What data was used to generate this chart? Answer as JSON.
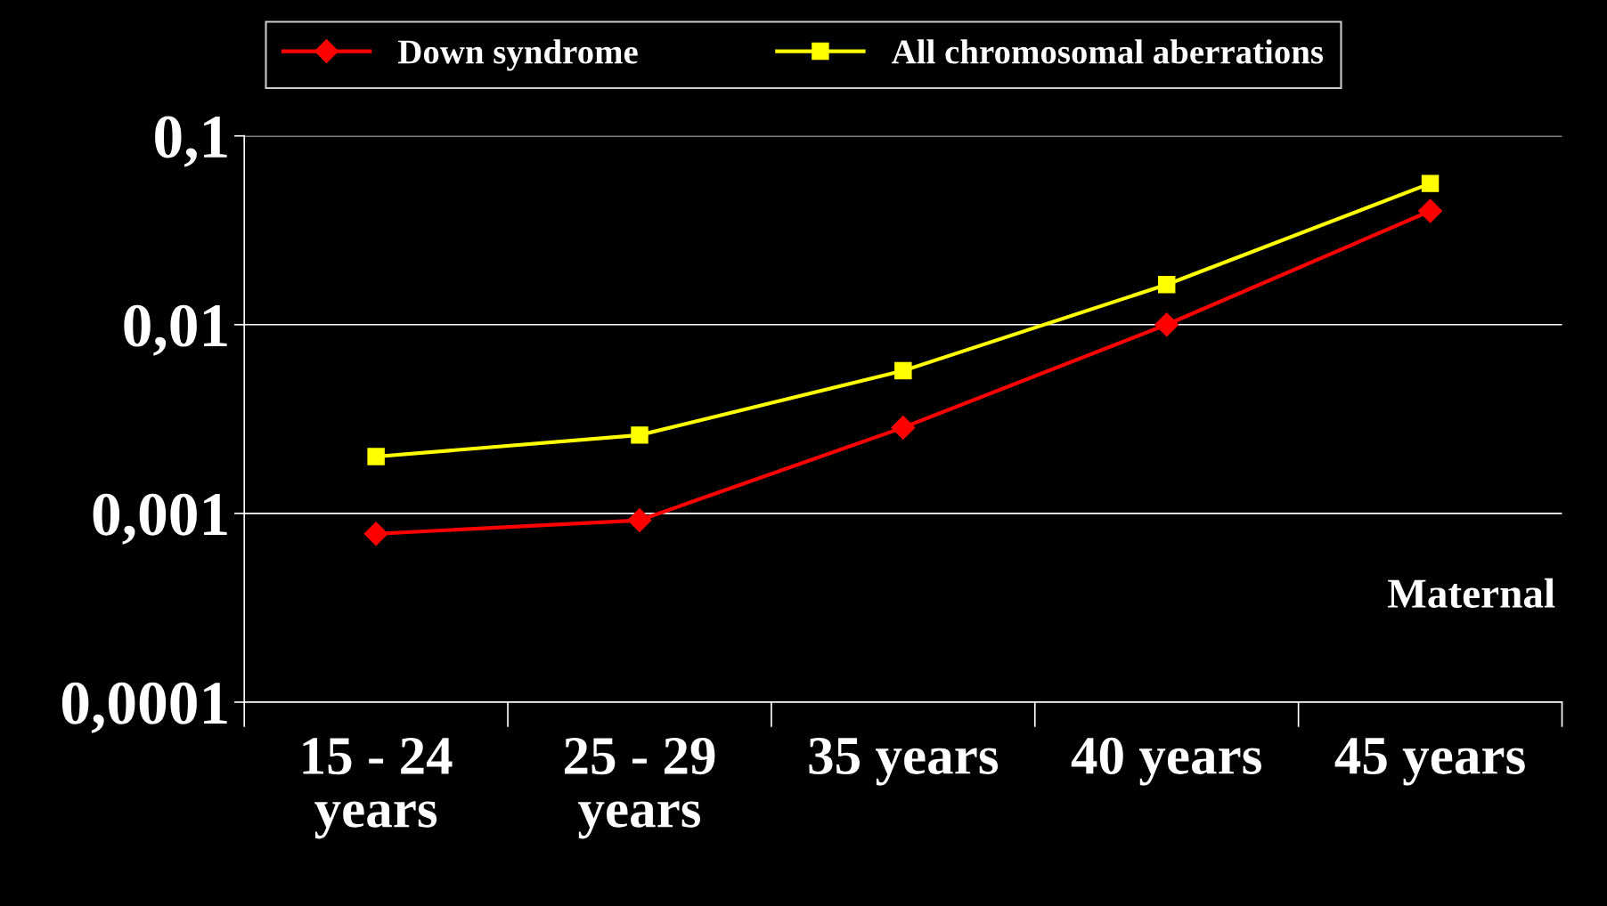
{
  "chart_data": {
    "type": "line",
    "xlabel": "Maternal",
    "categories": [
      "15 - 24 years",
      "25 - 29 years",
      "35 years",
      "40 years",
      "45 years"
    ],
    "series": [
      {
        "name": "Down syndrome",
        "color": "#ff0000",
        "marker": "diamond",
        "values": [
          0.00078,
          0.00092,
          0.00285,
          0.01,
          0.04
        ]
      },
      {
        "name": "All chromosomal aberrations",
        "color": "#ffff00",
        "marker": "square",
        "values": [
          0.002,
          0.0026,
          0.0057,
          0.0163,
          0.056
        ]
      }
    ],
    "log": "y",
    "ylim": [
      0.0001,
      0.1
    ],
    "yticks": [
      {
        "value": 0.0001,
        "label": "0,0001"
      },
      {
        "value": 0.001,
        "label": "0,001"
      },
      {
        "value": 0.01,
        "label": "0,01"
      },
      {
        "value": 0.1,
        "label": "0,1"
      }
    ],
    "grid": "y",
    "legend": "top",
    "line_style": "solid"
  }
}
